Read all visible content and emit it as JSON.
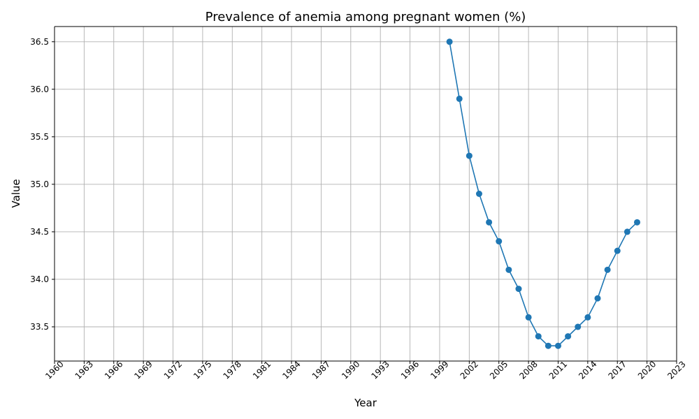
{
  "chart_data": {
    "type": "line",
    "title": "Prevalence of anemia among pregnant women (%)",
    "xlabel": "Year",
    "ylabel": "Value",
    "xlim": [
      1960,
      2023
    ],
    "ylim": [
      33.14,
      36.66
    ],
    "xticks": [
      1960,
      1963,
      1966,
      1969,
      1972,
      1975,
      1978,
      1981,
      1984,
      1987,
      1990,
      1993,
      1996,
      1999,
      2002,
      2005,
      2008,
      2011,
      2014,
      2017,
      2020,
      2023
    ],
    "yticks": [
      33.5,
      34.0,
      34.5,
      35.0,
      35.5,
      36.0,
      36.5
    ],
    "ytick_labels": [
      "33.5",
      "34.0",
      "34.5",
      "35.0",
      "35.5",
      "36.0",
      "36.5"
    ],
    "grid": true,
    "color": "#1f77b4",
    "series": [
      {
        "x": [
          2000,
          2001,
          2002,
          2003,
          2004,
          2005,
          2006,
          2007,
          2008,
          2009,
          2010,
          2011,
          2012,
          2013,
          2014,
          2015,
          2016,
          2017,
          2018,
          2019
        ],
        "y": [
          36.5,
          35.9,
          35.3,
          34.9,
          34.6,
          34.4,
          34.1,
          33.9,
          33.6,
          33.4,
          33.3,
          33.3,
          33.4,
          33.5,
          33.6,
          33.8,
          34.1,
          34.3,
          34.5,
          34.6
        ]
      }
    ]
  }
}
